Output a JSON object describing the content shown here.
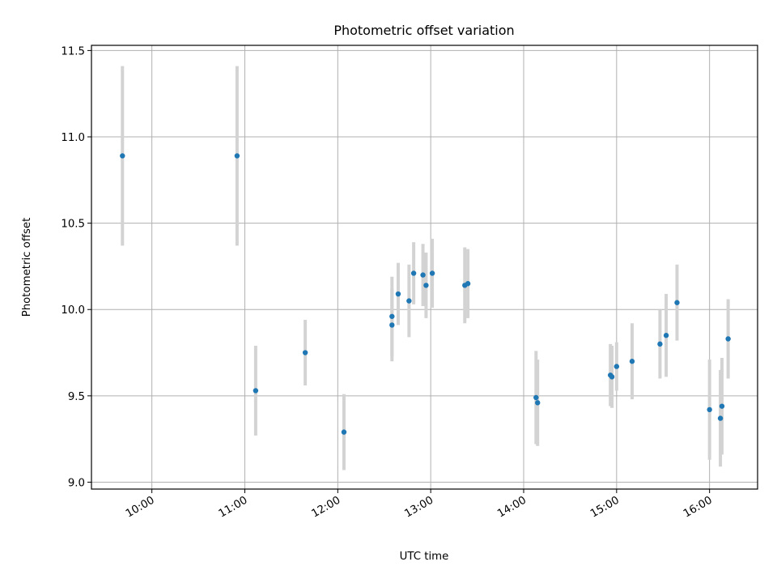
{
  "chart_data": {
    "type": "scatter",
    "title": "Photometric offset variation",
    "xlabel": "UTC time",
    "ylabel": "Photometric offset",
    "xlim": [
      "09:21",
      "16:31"
    ],
    "ylim": [
      8.96,
      11.53
    ],
    "x_ticks": [
      "10:00",
      "11:00",
      "12:00",
      "13:00",
      "14:00",
      "15:00",
      "16:00"
    ],
    "y_ticks": [
      "9.0",
      "9.5",
      "10.0",
      "10.5",
      "11.0",
      "11.5"
    ],
    "grid": true,
    "colors": {
      "point": "#1f77b4",
      "errorbar": "#d3d3d3"
    },
    "points": [
      {
        "x": "09:41",
        "y": 10.89,
        "err": 0.52
      },
      {
        "x": "10:55",
        "y": 10.89,
        "err": 0.52
      },
      {
        "x": "11:07",
        "y": 9.53,
        "err": 0.26
      },
      {
        "x": "11:39",
        "y": 9.75,
        "err": 0.19
      },
      {
        "x": "12:04",
        "y": 9.29,
        "err": 0.22
      },
      {
        "x": "12:35",
        "y": 9.91,
        "err": 0.21
      },
      {
        "x": "12:35",
        "y": 9.96,
        "err": 0.23
      },
      {
        "x": "12:39",
        "y": 10.09,
        "err": 0.18
      },
      {
        "x": "12:46",
        "y": 10.05,
        "err": 0.21
      },
      {
        "x": "12:49",
        "y": 10.21,
        "err": 0.18
      },
      {
        "x": "12:55",
        "y": 10.2,
        "err": 0.18
      },
      {
        "x": "12:57",
        "y": 10.14,
        "err": 0.19
      },
      {
        "x": "13:01",
        "y": 10.21,
        "err": 0.2
      },
      {
        "x": "13:22",
        "y": 10.14,
        "err": 0.22
      },
      {
        "x": "13:24",
        "y": 10.15,
        "err": 0.2
      },
      {
        "x": "14:08",
        "y": 9.49,
        "err": 0.27
      },
      {
        "x": "14:09",
        "y": 9.46,
        "err": 0.25
      },
      {
        "x": "14:56",
        "y": 9.62,
        "err": 0.18
      },
      {
        "x": "14:57",
        "y": 9.61,
        "err": 0.18
      },
      {
        "x": "15:00",
        "y": 9.67,
        "err": 0.14
      },
      {
        "x": "15:10",
        "y": 9.7,
        "err": 0.22
      },
      {
        "x": "15:28",
        "y": 9.8,
        "err": 0.2
      },
      {
        "x": "15:32",
        "y": 9.85,
        "err": 0.24
      },
      {
        "x": "15:39",
        "y": 10.04,
        "err": 0.22
      },
      {
        "x": "16:00",
        "y": 9.42,
        "err": 0.29
      },
      {
        "x": "16:07",
        "y": 9.37,
        "err": 0.28
      },
      {
        "x": "16:08",
        "y": 9.44,
        "err": 0.28
      },
      {
        "x": "16:12",
        "y": 9.83,
        "err": 0.23
      }
    ]
  }
}
